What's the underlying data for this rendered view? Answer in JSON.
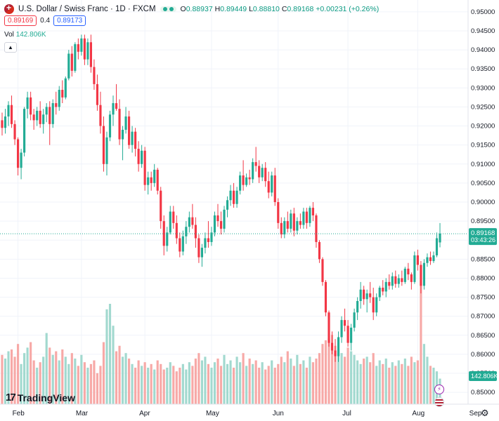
{
  "header": {
    "title": "U.S. Dollar / Swiss Franc · 1D · FXCM",
    "open_label": "O",
    "open": "0.88937",
    "high_label": "H",
    "high": "0.89449",
    "low_label": "L",
    "low": "0.88810",
    "close_label": "C",
    "close": "0.89168",
    "change": "+0.00231 (+0.26%)"
  },
  "quote": {
    "sell": "0.89169",
    "spread": "0.4",
    "buy": "0.89173"
  },
  "volume": {
    "label": "Vol",
    "value": "142.806K"
  },
  "price_label": {
    "value": "0.89168",
    "countdown": "03:43:26"
  },
  "vol_label": "142.806K",
  "logo_text": "TradingView",
  "colors": {
    "up": "#22ab94",
    "down": "#f23645",
    "vol_up": "#a2d9cf",
    "vol_down": "#f7a9a7",
    "grid": "#f0f3fa"
  },
  "chart_data": {
    "type": "candlestick",
    "symbol": "USDCHF",
    "x_ticks": [
      "Feb",
      "Mar",
      "Apr",
      "May",
      "Jun",
      "Jul",
      "Aug",
      "Sep"
    ],
    "y_ticks": [
      "0.95000",
      "0.94500",
      "0.94000",
      "0.93500",
      "0.93000",
      "0.92500",
      "0.92000",
      "0.91500",
      "0.91000",
      "0.90500",
      "0.90000",
      "0.89500",
      "0.89000",
      "0.88500",
      "0.88000",
      "0.87500",
      "0.87000",
      "0.86500",
      "0.86000",
      "0.85500",
      "0.85000"
    ],
    "ylim": [
      0.848,
      0.952
    ],
    "last_price": 0.89168,
    "bars": [
      [
        0.9215,
        0.9235,
        0.9175,
        0.9195,
        2.7
      ],
      [
        0.9195,
        0.9245,
        0.918,
        0.9225,
        2.5
      ],
      [
        0.9225,
        0.9265,
        0.92,
        0.9255,
        2.9
      ],
      [
        0.9255,
        0.928,
        0.9195,
        0.9205,
        3.0
      ],
      [
        0.9205,
        0.9215,
        0.915,
        0.9165,
        2.6
      ],
      [
        0.9165,
        0.917,
        0.907,
        0.909,
        3.3
      ],
      [
        0.909,
        0.914,
        0.906,
        0.913,
        2.2
      ],
      [
        0.913,
        0.925,
        0.912,
        0.9245,
        2.8
      ],
      [
        0.9245,
        0.929,
        0.922,
        0.9275,
        3.1
      ],
      [
        0.9275,
        0.929,
        0.9215,
        0.923,
        3.4
      ],
      [
        0.923,
        0.9245,
        0.919,
        0.9215,
        2.4
      ],
      [
        0.9215,
        0.925,
        0.92,
        0.924,
        2.0
      ],
      [
        0.924,
        0.9265,
        0.9195,
        0.9205,
        2.3
      ],
      [
        0.9205,
        0.9245,
        0.918,
        0.923,
        2.6
      ],
      [
        0.923,
        0.926,
        0.921,
        0.925,
        3.9
      ],
      [
        0.925,
        0.9265,
        0.915,
        0.9205,
        3.1
      ],
      [
        0.9205,
        0.927,
        0.9195,
        0.926,
        2.7
      ],
      [
        0.926,
        0.929,
        0.923,
        0.925,
        2.9
      ],
      [
        0.925,
        0.9305,
        0.924,
        0.9295,
        2.4
      ],
      [
        0.9295,
        0.932,
        0.926,
        0.9275,
        3.0
      ],
      [
        0.9275,
        0.933,
        0.927,
        0.9325,
        2.6
      ],
      [
        0.9325,
        0.94,
        0.932,
        0.939,
        2.2
      ],
      [
        0.939,
        0.941,
        0.933,
        0.9345,
        2.8
      ],
      [
        0.9345,
        0.942,
        0.934,
        0.9415,
        2.5
      ],
      [
        0.9415,
        0.943,
        0.9375,
        0.9395,
        2.1
      ],
      [
        0.9395,
        0.944,
        0.9385,
        0.943,
        2.7
      ],
      [
        0.943,
        0.944,
        0.936,
        0.9375,
        2.3
      ],
      [
        0.9375,
        0.943,
        0.936,
        0.942,
        2.0
      ],
      [
        0.942,
        0.944,
        0.934,
        0.9355,
        2.2
      ],
      [
        0.9355,
        0.9375,
        0.9295,
        0.931,
        2.4
      ],
      [
        0.931,
        0.9335,
        0.924,
        0.9255,
        1.7
      ],
      [
        0.9255,
        0.929,
        0.918,
        0.92,
        2.1
      ],
      [
        0.92,
        0.9225,
        0.908,
        0.91,
        3.4
      ],
      [
        0.91,
        0.9185,
        0.907,
        0.917,
        5.2
      ],
      [
        0.917,
        0.924,
        0.916,
        0.923,
        5.5
      ],
      [
        0.923,
        0.928,
        0.92,
        0.926,
        4.3
      ],
      [
        0.926,
        0.931,
        0.924,
        0.9245,
        2.9
      ],
      [
        0.9245,
        0.927,
        0.915,
        0.9165,
        3.2
      ],
      [
        0.9165,
        0.92,
        0.911,
        0.919,
        2.6
      ],
      [
        0.919,
        0.925,
        0.918,
        0.9225,
        2.8
      ],
      [
        0.9225,
        0.924,
        0.914,
        0.915,
        2.5
      ],
      [
        0.915,
        0.92,
        0.913,
        0.9185,
        2.2
      ],
      [
        0.9185,
        0.9195,
        0.912,
        0.914,
        2.0
      ],
      [
        0.914,
        0.916,
        0.908,
        0.91,
        2.4
      ],
      [
        0.91,
        0.915,
        0.909,
        0.9135,
        2.1
      ],
      [
        0.9135,
        0.9145,
        0.903,
        0.9045,
        2.3
      ],
      [
        0.9045,
        0.908,
        0.902,
        0.9065,
        2.0
      ],
      [
        0.9065,
        0.908,
        0.903,
        0.905,
        2.2
      ],
      [
        0.905,
        0.91,
        0.904,
        0.9085,
        1.9
      ],
      [
        0.9085,
        0.909,
        0.902,
        0.903,
        2.4
      ],
      [
        0.903,
        0.904,
        0.893,
        0.895,
        2.2
      ],
      [
        0.895,
        0.8965,
        0.886,
        0.8885,
        1.9
      ],
      [
        0.8885,
        0.8935,
        0.887,
        0.892,
        2.0
      ],
      [
        0.892,
        0.899,
        0.8915,
        0.8975,
        2.3
      ],
      [
        0.8975,
        0.899,
        0.893,
        0.8945,
        2.1
      ],
      [
        0.8945,
        0.8965,
        0.889,
        0.8905,
        1.8
      ],
      [
        0.8905,
        0.892,
        0.8855,
        0.887,
        2.0
      ],
      [
        0.887,
        0.8925,
        0.886,
        0.891,
        2.2
      ],
      [
        0.891,
        0.895,
        0.889,
        0.8935,
        1.9
      ],
      [
        0.8935,
        0.8975,
        0.892,
        0.896,
        2.3
      ],
      [
        0.896,
        0.8995,
        0.893,
        0.894,
        2.1
      ],
      [
        0.894,
        0.896,
        0.888,
        0.8905,
        2.5
      ],
      [
        0.8905,
        0.8915,
        0.884,
        0.8855,
        2.8
      ],
      [
        0.8855,
        0.889,
        0.883,
        0.888,
        2.4
      ],
      [
        0.888,
        0.892,
        0.8865,
        0.8905,
        2.6
      ],
      [
        0.8905,
        0.895,
        0.888,
        0.8895,
        2.2
      ],
      [
        0.8895,
        0.8935,
        0.8885,
        0.892,
        2.0
      ],
      [
        0.892,
        0.8975,
        0.891,
        0.8965,
        2.3
      ],
      [
        0.8965,
        0.8995,
        0.8935,
        0.895,
        2.5
      ],
      [
        0.895,
        0.8975,
        0.8915,
        0.893,
        2.1
      ],
      [
        0.893,
        0.899,
        0.892,
        0.898,
        2.7
      ],
      [
        0.898,
        0.9015,
        0.896,
        0.9005,
        2.2
      ],
      [
        0.9005,
        0.9045,
        0.899,
        0.903,
        2.4
      ],
      [
        0.903,
        0.905,
        0.8985,
        0.8995,
        2.0
      ],
      [
        0.8995,
        0.904,
        0.8985,
        0.903,
        2.6
      ],
      [
        0.903,
        0.908,
        0.902,
        0.907,
        2.3
      ],
      [
        0.907,
        0.911,
        0.903,
        0.9045,
        2.8
      ],
      [
        0.9045,
        0.9075,
        0.904,
        0.9065,
        2.1
      ],
      [
        0.9065,
        0.9085,
        0.9045,
        0.906,
        2.5
      ],
      [
        0.906,
        0.9115,
        0.905,
        0.9105,
        2.2
      ],
      [
        0.9105,
        0.9145,
        0.908,
        0.9095,
        2.4
      ],
      [
        0.9095,
        0.911,
        0.905,
        0.9065,
        2.0
      ],
      [
        0.9065,
        0.91,
        0.9055,
        0.909,
        2.3
      ],
      [
        0.909,
        0.9105,
        0.904,
        0.9055,
        1.9
      ],
      [
        0.9055,
        0.908,
        0.901,
        0.9025,
        2.1
      ],
      [
        0.9025,
        0.908,
        0.9015,
        0.907,
        2.4
      ],
      [
        0.907,
        0.909,
        0.899,
        0.9,
        2.0
      ],
      [
        0.9,
        0.901,
        0.893,
        0.8945,
        2.2
      ],
      [
        0.8945,
        0.896,
        0.8905,
        0.8915,
        2.6
      ],
      [
        0.8915,
        0.896,
        0.8905,
        0.895,
        2.3
      ],
      [
        0.895,
        0.8975,
        0.892,
        0.893,
        2.9
      ],
      [
        0.893,
        0.898,
        0.892,
        0.897,
        2.5
      ],
      [
        0.897,
        0.8985,
        0.891,
        0.8925,
        2.1
      ],
      [
        0.8925,
        0.896,
        0.8915,
        0.895,
        2.7
      ],
      [
        0.895,
        0.897,
        0.893,
        0.894,
        2.2
      ],
      [
        0.894,
        0.8985,
        0.893,
        0.8975,
        2.4
      ],
      [
        0.8975,
        0.8985,
        0.893,
        0.8945,
        2.0
      ],
      [
        0.8945,
        0.899,
        0.8935,
        0.8985,
        2.6
      ],
      [
        0.8985,
        0.9,
        0.895,
        0.8965,
        2.3
      ],
      [
        0.8965,
        0.897,
        0.888,
        0.8895,
        2.5
      ],
      [
        0.8895,
        0.89,
        0.884,
        0.885,
        2.8
      ],
      [
        0.885,
        0.8855,
        0.878,
        0.879,
        3.3
      ],
      [
        0.879,
        0.8795,
        0.87,
        0.871,
        3.5
      ],
      [
        0.871,
        0.8715,
        0.862,
        0.863,
        3.6
      ],
      [
        0.863,
        0.866,
        0.86,
        0.861,
        3.8
      ],
      [
        0.861,
        0.864,
        0.858,
        0.8595,
        3.2
      ],
      [
        0.8595,
        0.866,
        0.858,
        0.8645,
        3.0
      ],
      [
        0.8645,
        0.87,
        0.863,
        0.869,
        2.8
      ],
      [
        0.869,
        0.872,
        0.866,
        0.8675,
        2.6
      ],
      [
        0.8675,
        0.869,
        0.862,
        0.863,
        3.1
      ],
      [
        0.863,
        0.868,
        0.861,
        0.867,
        2.9
      ],
      [
        0.867,
        0.872,
        0.866,
        0.871,
        2.7
      ],
      [
        0.871,
        0.875,
        0.869,
        0.874,
        2.4
      ],
      [
        0.874,
        0.879,
        0.872,
        0.877,
        2.2
      ],
      [
        0.877,
        0.878,
        0.873,
        0.8745,
        2.5
      ],
      [
        0.8745,
        0.877,
        0.871,
        0.876,
        2.6
      ],
      [
        0.876,
        0.879,
        0.8735,
        0.875,
        2.3
      ],
      [
        0.875,
        0.8775,
        0.869,
        0.871,
        2.8
      ],
      [
        0.871,
        0.876,
        0.87,
        0.875,
        2.1
      ],
      [
        0.875,
        0.878,
        0.874,
        0.8775,
        2.4
      ],
      [
        0.8775,
        0.8795,
        0.8755,
        0.8765,
        2.2
      ],
      [
        0.8765,
        0.88,
        0.875,
        0.879,
        2.5
      ],
      [
        0.879,
        0.881,
        0.877,
        0.878,
        2.0
      ],
      [
        0.878,
        0.8815,
        0.877,
        0.8805,
        2.3
      ],
      [
        0.8805,
        0.882,
        0.8775,
        0.8785,
        2.1
      ],
      [
        0.8785,
        0.881,
        0.8775,
        0.88,
        2.4
      ],
      [
        0.88,
        0.882,
        0.878,
        0.879,
        2.2
      ],
      [
        0.879,
        0.883,
        0.8785,
        0.8825,
        2.5
      ],
      [
        0.8825,
        0.884,
        0.8795,
        0.881,
        2.1
      ],
      [
        0.881,
        0.8815,
        0.877,
        0.879,
        2.6
      ],
      [
        0.879,
        0.887,
        0.8785,
        0.886,
        2.3
      ],
      [
        0.886,
        0.8875,
        0.882,
        0.8835,
        2.4
      ],
      [
        0.8835,
        0.8845,
        0.876,
        0.878,
        6.8
      ],
      [
        0.878,
        0.885,
        0.877,
        0.884,
        3.3
      ],
      [
        0.884,
        0.8865,
        0.883,
        0.8855,
        2.6
      ],
      [
        0.8855,
        0.887,
        0.8835,
        0.8845,
        2.1
      ],
      [
        0.8845,
        0.887,
        0.884,
        0.886,
        2.0
      ],
      [
        0.886,
        0.892,
        0.8855,
        0.8905,
        1.8
      ],
      [
        0.8894,
        0.8945,
        0.8881,
        0.8917,
        1.4
      ]
    ]
  }
}
